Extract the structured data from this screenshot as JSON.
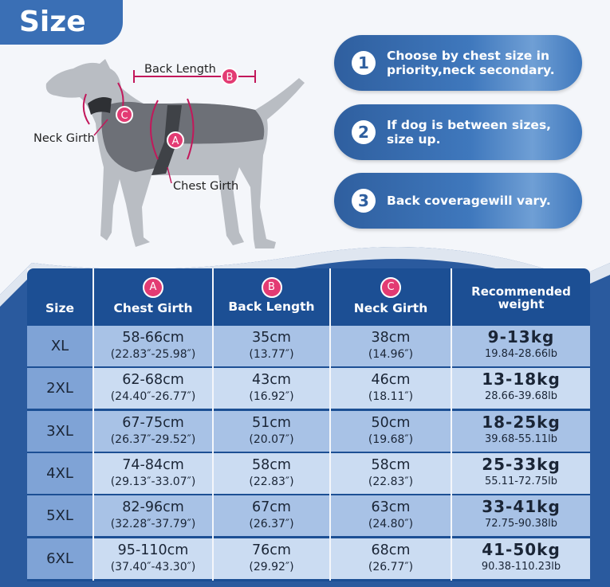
{
  "title": "Size",
  "diagram": {
    "back_length_label": "Back Length",
    "neck_girth_label": "Neck Girth",
    "chest_girth_label": "Chest Girth",
    "marker_a": "A",
    "marker_b": "B",
    "marker_c": "C"
  },
  "tips": [
    {
      "num": "1",
      "line1": "Choose by chest size in",
      "line2": "priority,neck secondary."
    },
    {
      "num": "2",
      "line1": "If dog is between sizes,",
      "line2": "size up."
    },
    {
      "num": "3",
      "line1": "Back coveragewill vary.",
      "line2": ""
    }
  ],
  "table": {
    "headers": {
      "size": "Size",
      "chest": {
        "badge": "A",
        "label": "Chest Girth"
      },
      "back": {
        "badge": "B",
        "label": "Back Length"
      },
      "neck": {
        "badge": "C",
        "label": "Neck Girth"
      },
      "weight": {
        "line1": "Recommended",
        "line2": "weight"
      }
    },
    "rows": [
      {
        "size": "XL",
        "chest_cm": "58-66cm",
        "chest_in": "(22.83″-25.98″)",
        "back_cm": "35cm",
        "back_in": "(13.77″)",
        "neck_cm": "38cm",
        "neck_in": "(14.96″)",
        "weight_kg": "9-13kg",
        "weight_lb": "19.84-28.66lb"
      },
      {
        "size": "2XL",
        "chest_cm": "62-68cm",
        "chest_in": "(24.40″-26.77″)",
        "back_cm": "43cm",
        "back_in": "(16.92″)",
        "neck_cm": "46cm",
        "neck_in": "(18.11″)",
        "weight_kg": "13-18kg",
        "weight_lb": "28.66-39.68lb"
      },
      {
        "size": "3XL",
        "chest_cm": "67-75cm",
        "chest_in": "(26.37″-29.52″)",
        "back_cm": "51cm",
        "back_in": "(20.07″)",
        "neck_cm": "50cm",
        "neck_in": "(19.68″)",
        "weight_kg": "18-25kg",
        "weight_lb": "39.68-55.11lb"
      },
      {
        "size": "4XL",
        "chest_cm": "74-84cm",
        "chest_in": "(29.13″-33.07″)",
        "back_cm": "58cm",
        "back_in": "(22.83″)",
        "neck_cm": "58cm",
        "neck_in": "(22.83″)",
        "weight_kg": "25-33kg",
        "weight_lb": "55.11-72.75lb"
      },
      {
        "size": "5XL",
        "chest_cm": "82-96cm",
        "chest_in": "(32.28″-37.79″)",
        "back_cm": "67cm",
        "back_in": "(26.37″)",
        "neck_cm": "63cm",
        "neck_in": "(24.80″)",
        "weight_kg": "33-41kg",
        "weight_lb": "72.75-90.38lb"
      },
      {
        "size": "6XL",
        "chest_cm": "95-110cm",
        "chest_in": "(37.40″-43.30″)",
        "back_cm": "76cm",
        "back_in": "(29.92″)",
        "neck_cm": "68cm",
        "neck_in": "(26.77″)",
        "weight_kg": "41-50kg",
        "weight_lb": "90.38-110.23lb"
      }
    ]
  },
  "colors": {
    "header_blue": "#1c4f94",
    "accent_pink": "#e33b73",
    "tip_blue": "#3a6fb5",
    "row_dark": "#a8c2e6",
    "row_light": "#cbdcf2"
  }
}
